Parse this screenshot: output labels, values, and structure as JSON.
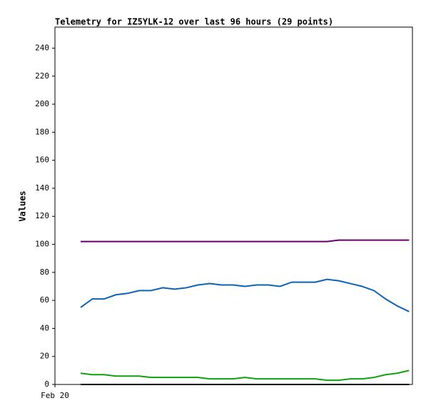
{
  "chart_data": {
    "type": "line",
    "title": "Telemetry for IZ5YLK-12 over last 96 hours (29 points)",
    "ylabel": "Values",
    "x": [
      6.9,
      10.05,
      13.2,
      16.35,
      19.5,
      22.65,
      25.8,
      28.95,
      32.1,
      35.25,
      38.4,
      41.55,
      44.7,
      47.85,
      51,
      54.15,
      57.3,
      60.45,
      63.6,
      66.75,
      69.9,
      73.05,
      76.2,
      79.35,
      82.5,
      85.65,
      88.8,
      91.95,
      95.1
    ],
    "series": [
      {
        "color": "#660066",
        "values": [
          102,
          102,
          102,
          102,
          102,
          102,
          102,
          102,
          102,
          102,
          102,
          102,
          102,
          102,
          102,
          102,
          102,
          102,
          102,
          102,
          102,
          102,
          103,
          103,
          103,
          103,
          103,
          103,
          103
        ]
      },
      {
        "color": "#0b63b6",
        "values": [
          55,
          61,
          61,
          64,
          65,
          67,
          67,
          69,
          68,
          69,
          71,
          72,
          71,
          71,
          70,
          71,
          71,
          70,
          73,
          73,
          73,
          75,
          74,
          72,
          70,
          67,
          61,
          56,
          52
        ]
      },
      {
        "color": "#10a010",
        "values": [
          8,
          7,
          7,
          6,
          6,
          6,
          5,
          5,
          5,
          5,
          5,
          4,
          4,
          4,
          5,
          4,
          4,
          4,
          4,
          4,
          4,
          3,
          3,
          4,
          4,
          5,
          7,
          8,
          10
        ]
      },
      {
        "color": "#000000",
        "values": [
          0,
          0,
          0,
          0,
          0,
          0,
          0,
          0,
          0,
          0,
          0,
          0,
          0,
          0,
          0,
          0,
          0,
          0,
          0,
          0,
          0,
          0,
          0,
          0,
          0,
          0,
          0,
          0,
          0
        ]
      }
    ],
    "xlim": [
      0,
      96
    ],
    "xticks": [
      {
        "value": 0,
        "label": "Feb 20"
      }
    ],
    "ylim": [
      0,
      255
    ],
    "yticks": [
      0,
      20,
      40,
      60,
      80,
      100,
      120,
      140,
      160,
      180,
      200,
      220,
      240
    ]
  }
}
